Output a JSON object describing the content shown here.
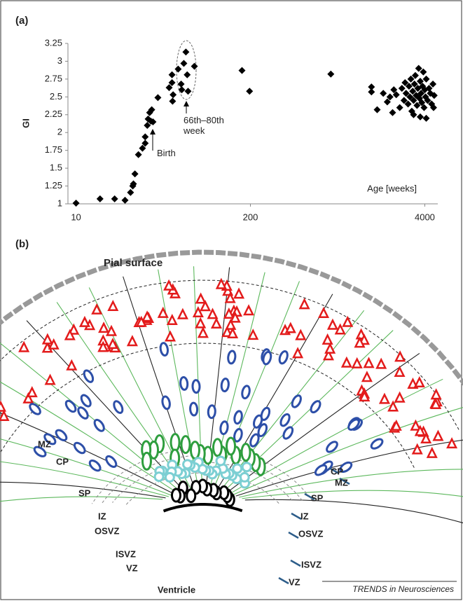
{
  "chart_data": {
    "type": "scatter",
    "panel_label": "(a)",
    "x_label": "Age [weeks]",
    "y_label": "GI",
    "log_x": true,
    "xlim": [
      8.7,
      5000
    ],
    "ylim": [
      1,
      3.25
    ],
    "xticks": [
      10,
      200,
      4000
    ],
    "yticks": [
      1,
      1.25,
      1.5,
      1.75,
      2,
      2.25,
      2.5,
      2.75,
      3,
      3.25
    ],
    "color": "#000000",
    "annotations": [
      "Birth",
      "66th–80th week"
    ],
    "x": [
      10,
      15.1,
      19.4,
      23.2,
      25.5,
      26.5,
      26.8,
      27.5,
      29.2,
      31.3,
      32.8,
      32.8,
      34,
      34.5,
      35.4,
      36.7,
      36.2,
      37.5,
      40.8,
      49.5,
      52,
      52,
      52.5,
      53,
      57.8,
      60.8,
      61.5,
      63.7,
      66,
      68.5,
      67.5,
      76.4,
      173,
      197,
      796,
      1600,
      1600,
      1765,
      1960,
      2100,
      2200,
      2300,
      2350,
      2450,
      2600,
      2700,
      2800,
      2850,
      2900,
      3000,
      3050,
      3100,
      3150,
      3200,
      3250,
      3300,
      3350,
      3400,
      3450,
      3500,
      3550,
      3600,
      3650,
      3700,
      3750,
      3800,
      3850,
      3900,
      3950,
      4000,
      4050,
      4100,
      4200,
      4300,
      4400,
      4500,
      4600,
      4700,
      4650,
      3700,
      3300,
      4100
    ],
    "values": [
      1.01,
      1.07,
      1.07,
      1.05,
      1.16,
      1.25,
      1.28,
      1.42,
      1.69,
      1.78,
      1.85,
      1.94,
      2.1,
      2.19,
      2.28,
      2.32,
      2.16,
      2.15,
      2.49,
      2.63,
      2.7,
      2.81,
      2.44,
      2.53,
      2.89,
      2.68,
      2.6,
      2.97,
      3.13,
      2.58,
      2.81,
      2.93,
      2.87,
      2.58,
      2.82,
      2.64,
      2.57,
      2.32,
      2.55,
      2.43,
      2.5,
      2.28,
      2.6,
      2.53,
      2.35,
      2.62,
      2.45,
      2.7,
      2.55,
      2.4,
      2.65,
      2.5,
      2.75,
      2.3,
      2.58,
      2.45,
      2.68,
      2.8,
      2.52,
      2.38,
      2.62,
      2.9,
      2.48,
      2.72,
      2.55,
      2.42,
      2.65,
      2.85,
      2.35,
      2.6,
      2.5,
      2.75,
      2.45,
      2.62,
      2.55,
      2.4,
      2.68,
      2.52,
      2.35,
      2.22,
      2.25,
      2.2
    ]
  },
  "diagram": {
    "panel_label": "(b)",
    "title": "Pial surface",
    "left_labels": [
      "MZ",
      "CP",
      "SP",
      "IZ",
      "OSVZ",
      "ISVZ",
      "VZ"
    ],
    "bottom_label": "Ventricle",
    "right_labels": [
      "SP",
      "IZ",
      "OSVZ",
      "ISVZ",
      "VZ",
      "CP",
      "MZ"
    ]
  },
  "footer": "TRENDS in Neurosciences"
}
